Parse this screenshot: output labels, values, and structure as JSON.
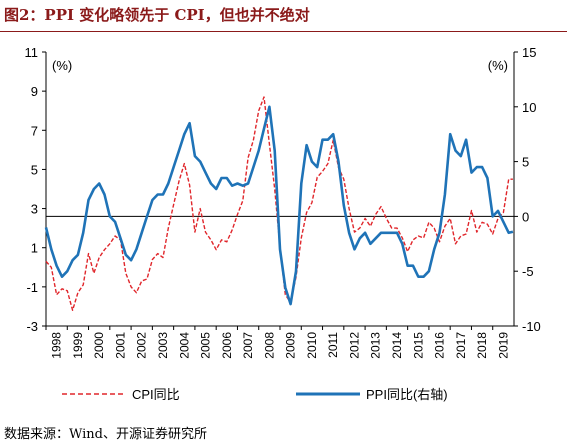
{
  "title": "图2：PPI 变化略领先于 CPI，但也并不绝对",
  "source": "数据来源：Wind、开源证券研究所",
  "chart_data": {
    "type": "line",
    "title": "图2：PPI 变化略领先于 CPI，但也并不绝对",
    "x_range": [
      1998,
      2020
    ],
    "x_ticks": [
      "1998",
      "1999",
      "2000",
      "2001",
      "2002",
      "2003",
      "2004",
      "2005",
      "2006",
      "2007",
      "2008",
      "2009",
      "2010",
      "2011",
      "2012",
      "2013",
      "2014",
      "2015",
      "2016",
      "2017",
      "2018",
      "2019"
    ],
    "left_axis": {
      "unit": "(%)",
      "ylim": [
        -3,
        11
      ],
      "ticks": [
        -3,
        -1,
        1,
        3,
        5,
        7,
        9,
        11
      ]
    },
    "right_axis": {
      "unit": "(%)",
      "ylim": [
        -10,
        15
      ],
      "ticks": [
        -10,
        -5,
        0,
        5,
        10,
        15
      ]
    },
    "zero_line_right": 0,
    "grid": false,
    "legend_position": "bottom",
    "series": [
      {
        "name": "CPI同比",
        "axis": "left",
        "color": "#e0262b",
        "style": "dashed",
        "points": [
          [
            1998.0,
            0.3
          ],
          [
            1998.25,
            0.0
          ],
          [
            1998.5,
            -1.4
          ],
          [
            1998.75,
            -1.1
          ],
          [
            1999.0,
            -1.2
          ],
          [
            1999.25,
            -2.2
          ],
          [
            1999.5,
            -1.3
          ],
          [
            1999.75,
            -0.9
          ],
          [
            2000.0,
            0.7
          ],
          [
            2000.25,
            -0.3
          ],
          [
            2000.5,
            0.5
          ],
          [
            2000.75,
            0.9
          ],
          [
            2001.0,
            1.2
          ],
          [
            2001.25,
            1.6
          ],
          [
            2001.5,
            1.4
          ],
          [
            2001.75,
            -0.3
          ],
          [
            2002.0,
            -1.0
          ],
          [
            2002.25,
            -1.3
          ],
          [
            2002.5,
            -0.7
          ],
          [
            2002.75,
            -0.6
          ],
          [
            2003.0,
            0.4
          ],
          [
            2003.25,
            0.7
          ],
          [
            2003.5,
            0.5
          ],
          [
            2003.75,
            2.0
          ],
          [
            2004.0,
            3.2
          ],
          [
            2004.25,
            4.4
          ],
          [
            2004.5,
            5.3
          ],
          [
            2004.75,
            4.2
          ],
          [
            2005.0,
            1.8
          ],
          [
            2005.25,
            3.0
          ],
          [
            2005.5,
            1.8
          ],
          [
            2005.75,
            1.4
          ],
          [
            2006.0,
            0.9
          ],
          [
            2006.25,
            1.4
          ],
          [
            2006.5,
            1.3
          ],
          [
            2006.75,
            1.9
          ],
          [
            2007.0,
            2.7
          ],
          [
            2007.25,
            3.4
          ],
          [
            2007.5,
            5.6
          ],
          [
            2007.75,
            6.5
          ],
          [
            2008.0,
            8.0
          ],
          [
            2008.25,
            8.7
          ],
          [
            2008.5,
            6.3
          ],
          [
            2008.75,
            4.0
          ],
          [
            2009.0,
            1.0
          ],
          [
            2009.25,
            -1.4
          ],
          [
            2009.5,
            -1.8
          ],
          [
            2009.75,
            -0.5
          ],
          [
            2010.0,
            1.5
          ],
          [
            2010.25,
            2.8
          ],
          [
            2010.5,
            3.3
          ],
          [
            2010.75,
            4.6
          ],
          [
            2011.0,
            4.9
          ],
          [
            2011.25,
            5.3
          ],
          [
            2011.5,
            6.5
          ],
          [
            2011.75,
            5.1
          ],
          [
            2012.0,
            4.5
          ],
          [
            2012.25,
            3.0
          ],
          [
            2012.5,
            1.8
          ],
          [
            2012.75,
            2.0
          ],
          [
            2013.0,
            2.5
          ],
          [
            2013.25,
            2.1
          ],
          [
            2013.5,
            2.7
          ],
          [
            2013.75,
            3.1
          ],
          [
            2014.0,
            2.5
          ],
          [
            2014.25,
            2.0
          ],
          [
            2014.5,
            2.0
          ],
          [
            2014.75,
            1.5
          ],
          [
            2015.0,
            0.8
          ],
          [
            2015.25,
            1.4
          ],
          [
            2015.5,
            1.6
          ],
          [
            2015.75,
            1.5
          ],
          [
            2016.0,
            2.3
          ],
          [
            2016.25,
            2.0
          ],
          [
            2016.5,
            1.3
          ],
          [
            2016.75,
            2.1
          ],
          [
            2017.0,
            2.5
          ],
          [
            2017.25,
            1.2
          ],
          [
            2017.5,
            1.6
          ],
          [
            2017.75,
            1.7
          ],
          [
            2018.0,
            2.9
          ],
          [
            2018.25,
            1.8
          ],
          [
            2018.5,
            2.3
          ],
          [
            2018.75,
            2.2
          ],
          [
            2019.0,
            1.7
          ],
          [
            2019.25,
            2.5
          ],
          [
            2019.5,
            2.8
          ],
          [
            2019.75,
            4.5
          ],
          [
            2019.95,
            4.5
          ]
        ]
      },
      {
        "name": "PPI同比(右轴)",
        "axis": "right",
        "color": "#1f73b7",
        "style": "solid",
        "points": [
          [
            1998.0,
            -1.0
          ],
          [
            1998.25,
            -3.0
          ],
          [
            1998.5,
            -4.5
          ],
          [
            1998.75,
            -5.5
          ],
          [
            1999.0,
            -5.0
          ],
          [
            1999.25,
            -4.0
          ],
          [
            1999.5,
            -3.5
          ],
          [
            1999.75,
            -1.5
          ],
          [
            2000.0,
            1.5
          ],
          [
            2000.25,
            2.5
          ],
          [
            2000.5,
            3.0
          ],
          [
            2000.75,
            2.0
          ],
          [
            2001.0,
            0.0
          ],
          [
            2001.25,
            -0.5
          ],
          [
            2001.5,
            -2.0
          ],
          [
            2001.75,
            -3.5
          ],
          [
            2002.0,
            -4.0
          ],
          [
            2002.25,
            -3.0
          ],
          [
            2002.5,
            -1.5
          ],
          [
            2002.75,
            0.0
          ],
          [
            2003.0,
            1.5
          ],
          [
            2003.25,
            2.0
          ],
          [
            2003.5,
            2.0
          ],
          [
            2003.75,
            3.0
          ],
          [
            2004.0,
            4.5
          ],
          [
            2004.25,
            6.0
          ],
          [
            2004.5,
            7.5
          ],
          [
            2004.75,
            8.5
          ],
          [
            2005.0,
            5.5
          ],
          [
            2005.25,
            5.0
          ],
          [
            2005.5,
            4.0
          ],
          [
            2005.75,
            3.0
          ],
          [
            2006.0,
            2.5
          ],
          [
            2006.25,
            3.5
          ],
          [
            2006.5,
            3.5
          ],
          [
            2006.75,
            2.8
          ],
          [
            2007.0,
            3.0
          ],
          [
            2007.25,
            2.8
          ],
          [
            2007.5,
            3.0
          ],
          [
            2007.75,
            4.5
          ],
          [
            2008.0,
            6.0
          ],
          [
            2008.25,
            8.0
          ],
          [
            2008.5,
            10.0
          ],
          [
            2008.75,
            6.0
          ],
          [
            2009.0,
            -3.0
          ],
          [
            2009.25,
            -6.5
          ],
          [
            2009.5,
            -8.0
          ],
          [
            2009.75,
            -5.0
          ],
          [
            2010.0,
            3.0
          ],
          [
            2010.25,
            6.5
          ],
          [
            2010.5,
            5.0
          ],
          [
            2010.75,
            4.5
          ],
          [
            2011.0,
            7.0
          ],
          [
            2011.25,
            7.0
          ],
          [
            2011.5,
            7.5
          ],
          [
            2011.75,
            5.0
          ],
          [
            2012.0,
            1.0
          ],
          [
            2012.25,
            -1.5
          ],
          [
            2012.5,
            -3.0
          ],
          [
            2012.75,
            -2.0
          ],
          [
            2013.0,
            -1.5
          ],
          [
            2013.25,
            -2.5
          ],
          [
            2013.5,
            -2.0
          ],
          [
            2013.75,
            -1.5
          ],
          [
            2014.0,
            -1.5
          ],
          [
            2014.25,
            -1.5
          ],
          [
            2014.5,
            -1.5
          ],
          [
            2014.75,
            -2.5
          ],
          [
            2015.0,
            -4.5
          ],
          [
            2015.25,
            -4.5
          ],
          [
            2015.5,
            -5.5
          ],
          [
            2015.75,
            -5.5
          ],
          [
            2016.0,
            -5.0
          ],
          [
            2016.25,
            -3.0
          ],
          [
            2016.5,
            -1.5
          ],
          [
            2016.75,
            2.0
          ],
          [
            2017.0,
            7.5
          ],
          [
            2017.25,
            6.0
          ],
          [
            2017.5,
            5.5
          ],
          [
            2017.75,
            7.0
          ],
          [
            2018.0,
            4.0
          ],
          [
            2018.25,
            4.5
          ],
          [
            2018.5,
            4.5
          ],
          [
            2018.75,
            3.5
          ],
          [
            2019.0,
            0.0
          ],
          [
            2019.25,
            0.5
          ],
          [
            2019.5,
            -0.5
          ],
          [
            2019.75,
            -1.5
          ],
          [
            2019.95,
            -1.4
          ]
        ]
      }
    ]
  }
}
